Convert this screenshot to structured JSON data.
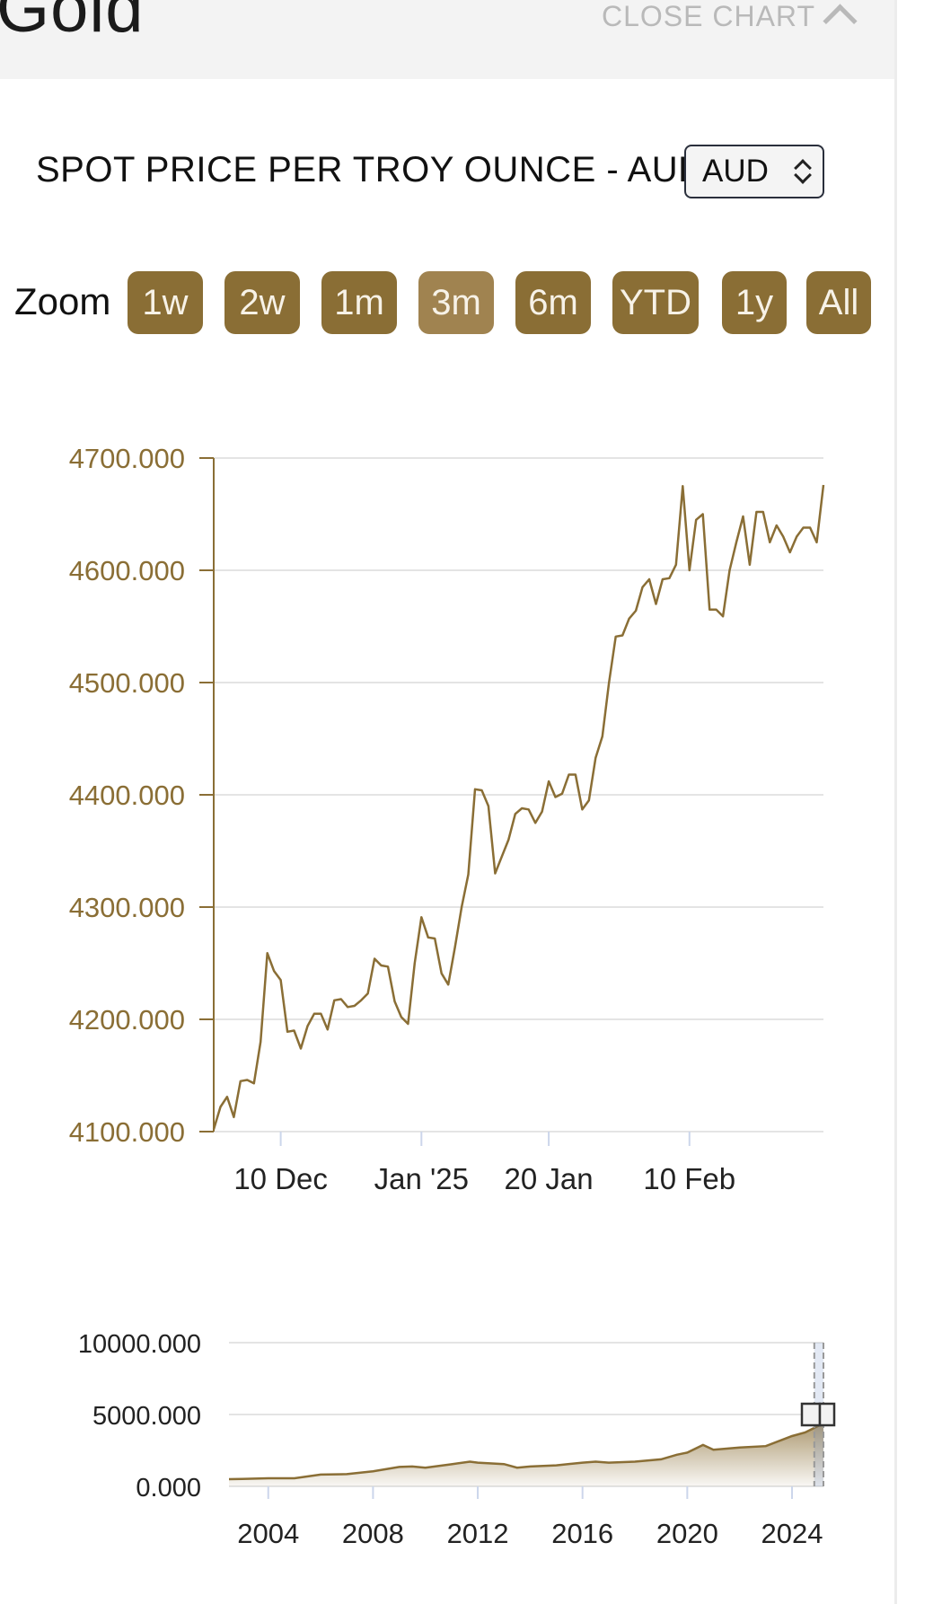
{
  "header": {
    "title": "Gold",
    "close_label": "CLOSE CHART"
  },
  "spot": {
    "title": "SPOT PRICE PER TROY OUNCE - AUD",
    "currency": "AUD"
  },
  "zoom": {
    "label": "Zoom",
    "buttons": [
      "1w",
      "2w",
      "1m",
      "3m",
      "6m",
      "YTD",
      "1y",
      "All"
    ],
    "active": "3m"
  },
  "colors": {
    "gold": "#8a6e35",
    "line": "#8a6e35",
    "grid": "#e4e4e4"
  },
  "chart_data": [
    {
      "type": "line",
      "title": "",
      "xlabel": "",
      "ylabel": "",
      "ylim": [
        4100,
        4700
      ],
      "yticks": [
        "4700.000",
        "4600.000",
        "4500.000",
        "4400.000",
        "4300.000",
        "4200.000",
        "4100.000"
      ],
      "xticks": [
        {
          "label": "10 Dec",
          "day": 10
        },
        {
          "label": "Jan '25",
          "day": 31
        },
        {
          "label": "20 Jan",
          "day": 50
        },
        {
          "label": "10 Feb",
          "day": 71
        }
      ],
      "xlim": [
        0,
        91
      ],
      "grid": true,
      "series": [
        {
          "x": [
            0,
            1,
            2,
            3,
            4,
            5,
            6,
            7,
            8,
            9,
            10,
            11,
            12,
            13,
            14,
            15,
            16,
            17,
            18,
            19,
            20,
            21,
            22,
            23,
            24,
            25,
            26,
            27,
            28,
            29,
            30,
            31,
            32,
            33,
            34,
            35,
            36,
            37,
            38,
            39,
            40,
            41,
            42,
            43,
            44,
            45,
            46,
            47,
            48,
            49,
            50,
            51,
            52,
            53,
            54,
            55,
            56,
            57,
            58,
            59,
            60,
            61,
            62,
            63,
            64,
            65,
            66,
            67,
            68,
            69,
            70,
            71,
            72,
            73,
            74,
            75,
            76,
            77,
            78,
            79,
            80,
            81,
            82,
            83,
            84,
            85,
            86,
            87,
            88,
            89,
            90,
            91
          ],
          "y": [
            4102,
            4122,
            4131,
            4113,
            4145,
            4146,
            4143,
            4180,
            4259,
            4243,
            4235,
            4189,
            4190,
            4174,
            4194,
            4205,
            4205,
            4191,
            4217,
            4218,
            4211,
            4212,
            4217,
            4223,
            4254,
            4248,
            4247,
            4216,
            4202,
            4196,
            4250,
            4291,
            4273,
            4272,
            4241,
            4231,
            4264,
            4300,
            4329,
            4405,
            4404,
            4390,
            4330,
            4345,
            4360,
            4383,
            4388,
            4387,
            4375,
            4385,
            4412,
            4398,
            4401,
            4418,
            4418,
            4387,
            4395,
            4433,
            4452,
            4500,
            4541,
            4542,
            4557,
            4564,
            4585,
            4592,
            4570,
            4592,
            4593,
            4605,
            4675,
            4600,
            4645,
            4650,
            4565,
            4565,
            4559,
            4600,
            4625,
            4648,
            4605,
            4652,
            4652,
            4625,
            4640,
            4630,
            4616,
            4630,
            4638,
            4638,
            4625,
            4676
          ]
        }
      ]
    },
    {
      "type": "area",
      "title": "",
      "ylim": [
        0,
        10000
      ],
      "yticks": [
        "10000.000",
        "5000.000",
        "0.000"
      ],
      "xticks": [
        "2004",
        "2008",
        "2012",
        "2016",
        "2020",
        "2024"
      ],
      "xlim": [
        2002.5,
        2025.2
      ],
      "grid": true,
      "series": [
        {
          "x": [
            2002.5,
            2003,
            2004,
            2005,
            2006,
            2007,
            2008,
            2009,
            2009.5,
            2010,
            2011,
            2011.7,
            2012,
            2013,
            2013.5,
            2014,
            2015,
            2016,
            2016.5,
            2017,
            2018,
            2019,
            2019.6,
            2020,
            2020.6,
            2021,
            2022,
            2023,
            2024,
            2024.5,
            2025,
            2025.2
          ],
          "y": [
            500,
            510,
            560,
            560,
            820,
            850,
            1050,
            1350,
            1380,
            1300,
            1540,
            1720,
            1650,
            1550,
            1300,
            1380,
            1460,
            1650,
            1720,
            1650,
            1720,
            1880,
            2200,
            2350,
            2880,
            2550,
            2700,
            2800,
            3500,
            3750,
            4200,
            4670
          ]
        }
      ],
      "navigator_range": [
        2024.85,
        2025.2
      ]
    }
  ]
}
